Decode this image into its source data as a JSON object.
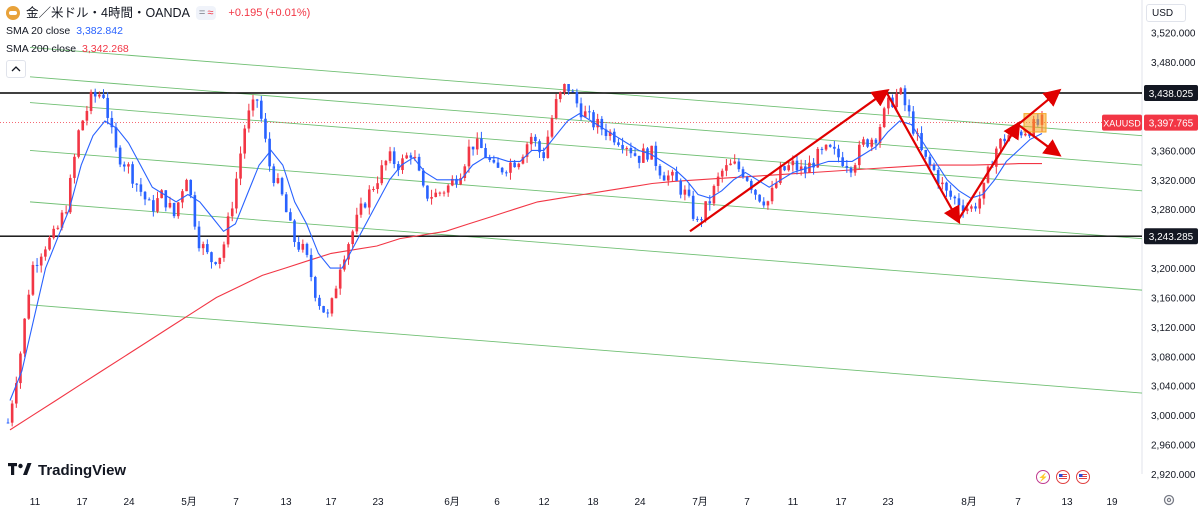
{
  "header": {
    "symbol_title": "金／米ドル・4時間・OANDA",
    "pill_left": "=",
    "pill_right": "≈",
    "change": "+0.195 (+0.01%)",
    "sma20_name": "SMA 20 close",
    "sma20_value": "3,382.842",
    "sma200_name": "SMA 200 close",
    "sma200_value": "3,342.268",
    "collapse_icon": "chevron-up-icon",
    "currency": "USD"
  },
  "branding": {
    "name": "TradingView"
  },
  "colors": {
    "up": "#f23645",
    "down": "#2962ff",
    "sma20": "#2962ff",
    "sma200": "#f23645",
    "channel": "#4caf50",
    "arrow": "#e00000",
    "level": "#000000"
  },
  "chart_data": {
    "type": "candlestick",
    "symbol": "XAUUSD",
    "last_price": "3,397.765",
    "ylim": [
      2920,
      3540
    ],
    "y_ticks": [
      "3,520.000",
      "3,480.000",
      "3,440.000",
      "3,400.000",
      "3,360.000",
      "3,320.000",
      "3,280.000",
      "3,240.000",
      "3,200.000",
      "3,160.000",
      "3,120.000",
      "3,080.000",
      "3,040.000",
      "3,000.000",
      "2,960.000",
      "2,920.000"
    ],
    "x_ticks": [
      "11",
      "17",
      "24",
      "5月",
      "7",
      "13",
      "17",
      "23",
      "6月",
      "6",
      "12",
      "18",
      "24",
      "7月",
      "7",
      "11",
      "17",
      "23",
      "8月",
      "7",
      "13",
      "19"
    ],
    "horizontal_levels": [
      {
        "label": "3,438.025",
        "value": 3438.025
      },
      {
        "label": "3,243.285",
        "value": 3243.285
      }
    ],
    "price_path": [
      2990,
      3080,
      3200,
      3230,
      3245,
      3290,
      3390,
      3430,
      3440,
      3360,
      3340,
      3310,
      3280,
      3300,
      3270,
      3330,
      3240,
      3210,
      3220,
      3300,
      3400,
      3430,
      3340,
      3300,
      3240,
      3220,
      3160,
      3130,
      3210,
      3250,
      3290,
      3320,
      3350,
      3340,
      3360,
      3300,
      3300,
      3310,
      3330,
      3370,
      3360,
      3330,
      3340,
      3350,
      3380,
      3350,
      3420,
      3450,
      3420,
      3400,
      3390,
      3380,
      3370,
      3350,
      3360,
      3330,
      3320,
      3300,
      3260,
      3290,
      3330,
      3340,
      3330,
      3300,
      3290,
      3330,
      3340,
      3330,
      3350,
      3360,
      3350,
      3340,
      3370,
      3380,
      3420,
      3440,
      3400,
      3350,
      3330,
      3300,
      3290,
      3280,
      3300,
      3360,
      3380,
      3385,
      3390,
      3398
    ],
    "sma20_path": [
      3020,
      3060,
      3130,
      3200,
      3240,
      3280,
      3340,
      3380,
      3400,
      3390,
      3370,
      3340,
      3310,
      3300,
      3290,
      3300,
      3290,
      3270,
      3250,
      3260,
      3300,
      3340,
      3360,
      3340,
      3290,
      3260,
      3220,
      3200,
      3200,
      3230,
      3260,
      3290,
      3320,
      3340,
      3350,
      3330,
      3320,
      3320,
      3320,
      3340,
      3350,
      3350,
      3345,
      3345,
      3360,
      3360,
      3380,
      3400,
      3410,
      3400,
      3390,
      3380,
      3370,
      3360,
      3355,
      3345,
      3335,
      3320,
      3300,
      3295,
      3305,
      3320,
      3330,
      3320,
      3310,
      3320,
      3330,
      3335,
      3340,
      3345,
      3345,
      3345,
      3355,
      3365,
      3385,
      3400,
      3395,
      3370,
      3345,
      3320,
      3305,
      3295,
      3300,
      3320,
      3345,
      3360,
      3375,
      3383
    ],
    "sma200_path": [
      2980,
      3000,
      3020,
      3040,
      3060,
      3080,
      3100,
      3120,
      3140,
      3160,
      3175,
      3190,
      3200,
      3210,
      3220,
      3225,
      3230,
      3240,
      3245,
      3250,
      3260,
      3270,
      3280,
      3290,
      3295,
      3300,
      3305,
      3310,
      3315,
      3318,
      3320,
      3322,
      3324,
      3326,
      3328,
      3330,
      3332,
      3334,
      3336,
      3338,
      3340,
      3340,
      3340,
      3341,
      3342,
      3342
    ],
    "channel_lines": [
      {
        "start": 3500,
        "end": 3380
      },
      {
        "start": 3460,
        "end": 3340
      },
      {
        "start": 3425,
        "end": 3305
      },
      {
        "start": 3360,
        "end": 3240
      },
      {
        "start": 3290,
        "end": 3170
      },
      {
        "start": 3150,
        "end": 3030
      }
    ],
    "arrows": [
      {
        "from": [
          3250,
          "7月"
        ],
        "to": [
          3440,
          "23"
        ]
      },
      {
        "from": [
          3440,
          "23"
        ],
        "to": [
          3265,
          "8月"
        ]
      },
      {
        "from": [
          3265,
          "8月"
        ],
        "to": [
          3395,
          "7"
        ]
      },
      {
        "from": [
          3395,
          "7"
        ],
        "to": [
          3440,
          "13"
        ]
      },
      {
        "from": [
          3395,
          "7"
        ],
        "to": [
          3355,
          "13"
        ]
      }
    ]
  }
}
